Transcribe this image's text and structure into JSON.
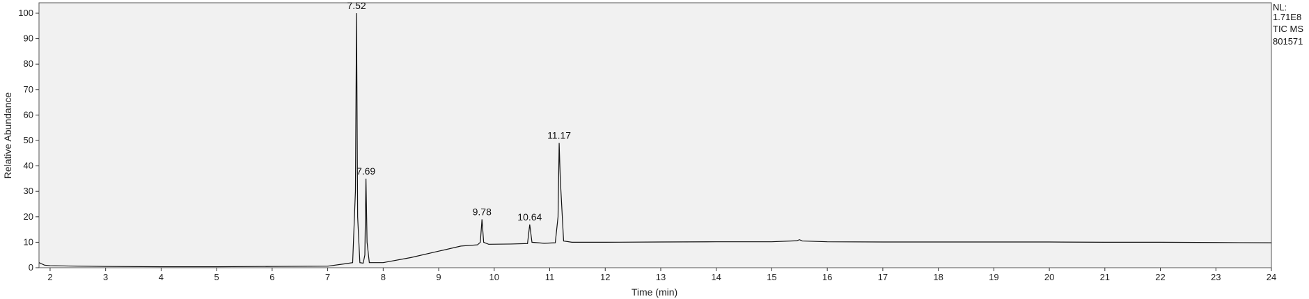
{
  "chart_data": {
    "type": "line",
    "xlabel": "Time (min)",
    "ylabel": "Relative Abundance",
    "xlim": [
      1.8,
      24
    ],
    "ylim": [
      0,
      100
    ],
    "x_ticks": [
      2,
      3,
      4,
      5,
      6,
      7,
      8,
      9,
      10,
      11,
      12,
      13,
      14,
      15,
      16,
      17,
      18,
      19,
      20,
      21,
      22,
      23,
      24
    ],
    "y_ticks": [
      0,
      10,
      20,
      30,
      40,
      50,
      60,
      70,
      80,
      90,
      100
    ],
    "grid": false,
    "info": [
      "NL:",
      "1.71E8",
      "TIC  MS",
      "801571"
    ],
    "peaks": [
      {
        "label": "7.52",
        "x": 7.52,
        "y": 100
      },
      {
        "label": "7.69",
        "x": 7.69,
        "y": 35
      },
      {
        "label": "9.78",
        "x": 9.78,
        "y": 19
      },
      {
        "label": "10.64",
        "x": 10.64,
        "y": 17
      },
      {
        "label": "11.17",
        "x": 11.17,
        "y": 49
      }
    ],
    "series": [
      {
        "x": [
          1.8,
          1.85,
          1.9,
          2.0,
          2.5,
          3.0,
          4.0,
          5.0,
          6.0,
          7.0,
          7.3,
          7.45,
          7.5,
          7.52,
          7.54,
          7.58,
          7.64,
          7.67,
          7.69,
          7.71,
          7.75,
          8.0,
          8.5,
          9.0,
          9.4,
          9.7,
          9.75,
          9.78,
          9.81,
          9.9,
          10.3,
          10.6,
          10.64,
          10.68,
          10.9,
          11.1,
          11.15,
          11.17,
          11.19,
          11.25,
          11.4,
          12.0,
          13.0,
          14.0,
          15.0,
          15.45,
          15.5,
          15.55,
          16.0,
          17.0,
          18.0,
          19.0,
          20.0,
          21.0,
          22.0,
          23.0,
          24.0
        ],
        "y": [
          2,
          1.5,
          1,
          0.8,
          0.6,
          0.5,
          0.4,
          0.4,
          0.5,
          0.6,
          1.5,
          2,
          30,
          100,
          20,
          2,
          1.8,
          5,
          35,
          10,
          2,
          2,
          4,
          6.5,
          8.5,
          9,
          10,
          19,
          10,
          9.2,
          9.3,
          9.5,
          17,
          10,
          9.6,
          9.8,
          20,
          49,
          35,
          10.5,
          10,
          10,
          10.1,
          10.2,
          10.2,
          10.6,
          11,
          10.5,
          10.2,
          10.1,
          10.1,
          10.1,
          10.1,
          10,
          10,
          9.9,
          9.8
        ]
      }
    ]
  }
}
